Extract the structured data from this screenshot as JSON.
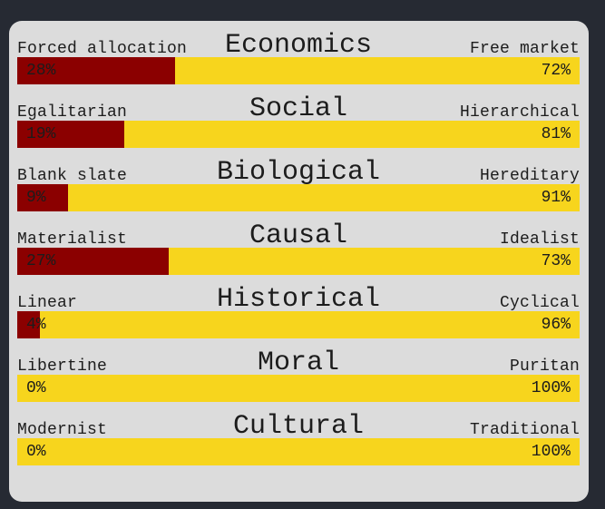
{
  "axes": [
    {
      "title": "Economics",
      "left_label": "Forced allocation",
      "right_label": "Free market",
      "left_pct": "28%",
      "right_pct": "72%",
      "left_value": 28
    },
    {
      "title": "Social",
      "left_label": "Egalitarian",
      "right_label": "Hierarchical",
      "left_pct": "19%",
      "right_pct": "81%",
      "left_value": 19
    },
    {
      "title": "Biological",
      "left_label": "Blank slate",
      "right_label": "Hereditary",
      "left_pct": "9%",
      "right_pct": "91%",
      "left_value": 9
    },
    {
      "title": "Causal",
      "left_label": "Materialist",
      "right_label": "Idealist",
      "left_pct": "27%",
      "right_pct": "73%",
      "left_value": 27
    },
    {
      "title": "Historical",
      "left_label": "Linear",
      "right_label": "Cyclical",
      "left_pct": "4%",
      "right_pct": "96%",
      "left_value": 4
    },
    {
      "title": "Moral",
      "left_label": "Libertine",
      "right_label": "Puritan",
      "left_pct": "0%",
      "right_pct": "100%",
      "left_value": 0
    },
    {
      "title": "Cultural",
      "left_label": "Modernist",
      "right_label": "Traditional",
      "left_pct": "0%",
      "right_pct": "100%",
      "left_value": 0
    }
  ],
  "colors": {
    "left_fill": "#8b0000",
    "right_fill": "#f7d51d",
    "card_bg": "#dcdcdc",
    "page_bg": "#262a33"
  }
}
